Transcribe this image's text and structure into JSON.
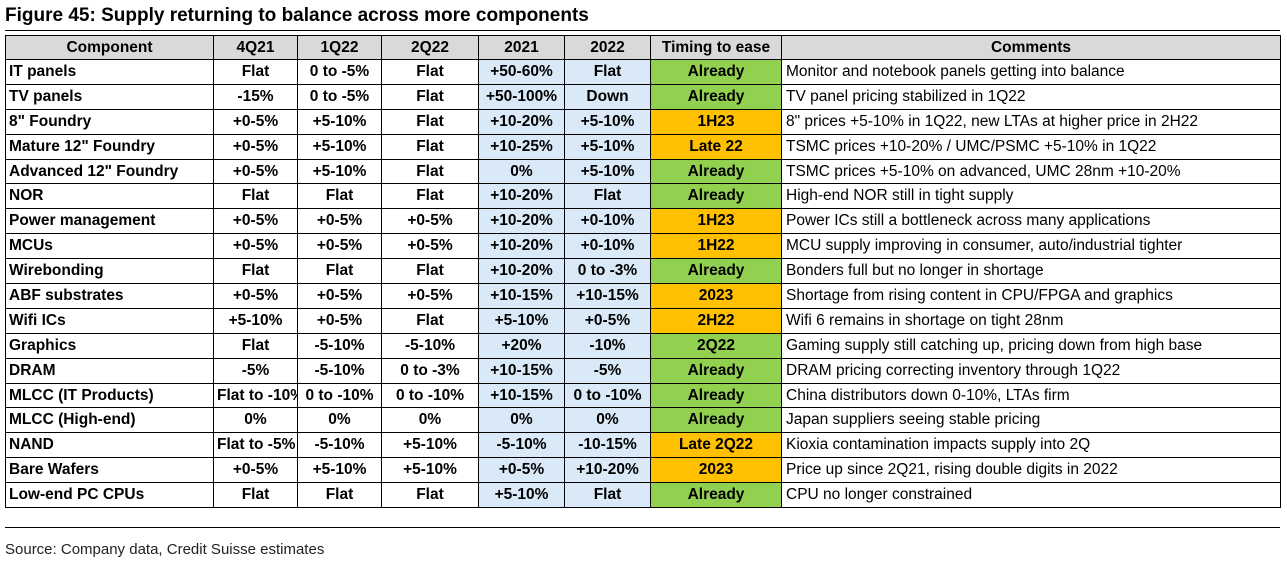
{
  "title": "Figure 45: Supply returning to balance across more components",
  "headers": [
    "Component",
    "4Q21",
    "1Q22",
    "2Q22",
    "2021",
    "2022",
    "Timing to ease",
    "Comments"
  ],
  "colors": {
    "header_bg": "#d9d9d9",
    "year_cols_bg": "#dae9f7",
    "already_green": "#92d050",
    "later_orange": "#ffc000"
  },
  "rows": [
    {
      "component": "IT panels",
      "q4_21": "Flat",
      "q1_22": "0 to -5%",
      "q2_22": "Flat",
      "y2021": "+50-60%",
      "y2022": "Flat",
      "timing": "Already",
      "timing_color": "green",
      "comment": "Monitor and notebook panels getting into balance"
    },
    {
      "component": "TV panels",
      "q4_21": "-15%",
      "q1_22": "0 to -5%",
      "q2_22": "Flat",
      "y2021": "+50-100%",
      "y2022": "Down",
      "timing": "Already",
      "timing_color": "green",
      "comment": "TV panel pricing stabilized in 1Q22"
    },
    {
      "component": "8\" Foundry",
      "q4_21": "+0-5%",
      "q1_22": "+5-10%",
      "q2_22": "Flat",
      "y2021": "+10-20%",
      "y2022": "+5-10%",
      "timing": "1H23",
      "timing_color": "orange",
      "comment": "8\" prices +5-10% in 1Q22, new LTAs at higher price in 2H22"
    },
    {
      "component": "Mature 12\" Foundry",
      "q4_21": "+0-5%",
      "q1_22": "+5-10%",
      "q2_22": "Flat",
      "y2021": "+10-25%",
      "y2022": "+5-10%",
      "timing": "Late 22",
      "timing_color": "orange",
      "comment": "TSMC prices +10-20% / UMC/PSMC +5-10% in 1Q22"
    },
    {
      "component": "Advanced 12\" Foundry",
      "q4_21": "+0-5%",
      "q1_22": "+5-10%",
      "q2_22": "Flat",
      "y2021": "0%",
      "y2022": "+5-10%",
      "timing": "Already",
      "timing_color": "green",
      "comment": "TSMC prices +5-10% on advanced, UMC 28nm +10-20%"
    },
    {
      "component": "NOR",
      "q4_21": "Flat",
      "q1_22": "Flat",
      "q2_22": "Flat",
      "y2021": "+10-20%",
      "y2022": "Flat",
      "timing": "Already",
      "timing_color": "green",
      "comment": "High-end NOR still in tight supply"
    },
    {
      "component": "Power management",
      "q4_21": "+0-5%",
      "q1_22": "+0-5%",
      "q2_22": "+0-5%",
      "y2021": "+10-20%",
      "y2022": "+0-10%",
      "timing": "1H23",
      "timing_color": "orange",
      "comment": "Power ICs still a bottleneck across many applications"
    },
    {
      "component": "MCUs",
      "q4_21": "+0-5%",
      "q1_22": "+0-5%",
      "q2_22": "+0-5%",
      "y2021": "+10-20%",
      "y2022": "+0-10%",
      "timing": "1H22",
      "timing_color": "orange",
      "comment": "MCU supply improving in consumer, auto/industrial tighter"
    },
    {
      "component": "Wirebonding",
      "q4_21": "Flat",
      "q1_22": "Flat",
      "q2_22": "Flat",
      "y2021": "+10-20%",
      "y2022": "0 to -3%",
      "timing": "Already",
      "timing_color": "green",
      "comment": "Bonders full but no longer in shortage"
    },
    {
      "component": "ABF substrates",
      "q4_21": "+0-5%",
      "q1_22": "+0-5%",
      "q2_22": "+0-5%",
      "y2021": "+10-15%",
      "y2022": "+10-15%",
      "timing": "2023",
      "timing_color": "orange",
      "comment": "Shortage from rising content in CPU/FPGA and graphics"
    },
    {
      "component": "Wifi ICs",
      "q4_21": "+5-10%",
      "q1_22": "+0-5%",
      "q2_22": "Flat",
      "y2021": "+5-10%",
      "y2022": "+0-5%",
      "timing": "2H22",
      "timing_color": "orange",
      "comment": "Wifi 6 remains in shortage on tight 28nm"
    },
    {
      "component": "Graphics",
      "q4_21": "Flat",
      "q1_22": "-5-10%",
      "q2_22": "-5-10%",
      "y2021": "+20%",
      "y2022": "-10%",
      "timing": "2Q22",
      "timing_color": "green",
      "comment": "Gaming supply still catching up, pricing down from high base"
    },
    {
      "component": "DRAM",
      "q4_21": "-5%",
      "q1_22": "-5-10%",
      "q2_22": "0 to -3%",
      "y2021": "+10-15%",
      "y2022": "-5%",
      "timing": "Already",
      "timing_color": "green",
      "comment": "DRAM pricing correcting inventory through 1Q22"
    },
    {
      "component": "MLCC (IT Products)",
      "q4_21": "Flat to -10%",
      "q1_22": "0 to -10%",
      "q2_22": "0 to -10%",
      "y2021": "+10-15%",
      "y2022": "0 to -10%",
      "timing": "Already",
      "timing_color": "green",
      "comment": "China distributors down 0-10%, LTAs firm"
    },
    {
      "component": "MLCC (High-end)",
      "q4_21": "0%",
      "q1_22": "0%",
      "q2_22": "0%",
      "y2021": "0%",
      "y2022": "0%",
      "timing": "Already",
      "timing_color": "green",
      "comment": "Japan suppliers seeing stable pricing"
    },
    {
      "component": "NAND",
      "q4_21": "Flat to -5%",
      "q1_22": "-5-10%",
      "q2_22": "+5-10%",
      "y2021": "-5-10%",
      "y2022": "-10-15%",
      "timing": "Late 2Q22",
      "timing_color": "orange",
      "comment": "Kioxia contamination impacts supply into 2Q"
    },
    {
      "component": "Bare Wafers",
      "q4_21": "+0-5%",
      "q1_22": "+5-10%",
      "q2_22": "+5-10%",
      "y2021": "+0-5%",
      "y2022": "+10-20%",
      "timing": "2023",
      "timing_color": "orange",
      "comment": "Price up since 2Q21, rising double digits in 2022"
    },
    {
      "component": "Low-end PC CPUs",
      "q4_21": "Flat",
      "q1_22": "Flat",
      "q2_22": "Flat",
      "y2021": "+5-10%",
      "y2022": "Flat",
      "timing": "Already",
      "timing_color": "green",
      "comment": "CPU no longer constrained"
    }
  ],
  "source": "Source: Company data, Credit Suisse estimates"
}
